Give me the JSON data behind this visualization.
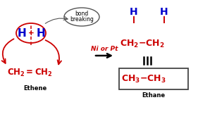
{
  "bg_color": "#ffffff",
  "red": "#cc0000",
  "blue": "#0000cc",
  "black": "#000000",
  "gray": "#555555",
  "ethene_label": "Ethene",
  "ethane_label": "Ethane",
  "catalyst": "Ni or Pt",
  "bond_line1": "bond",
  "bond_line2": "breaking",
  "figsize": [
    2.81,
    1.69
  ],
  "dpi": 100
}
